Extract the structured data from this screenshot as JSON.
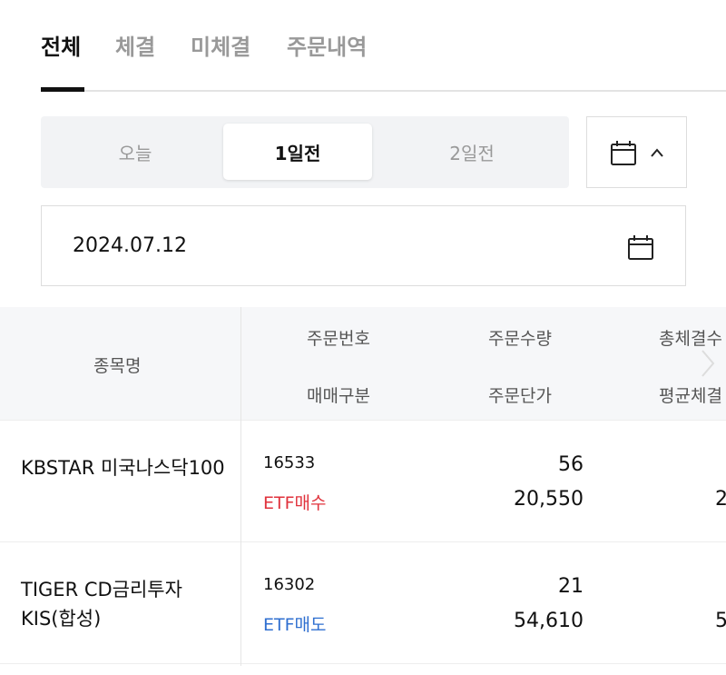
{
  "tabs": [
    {
      "label": "전체",
      "active": true
    },
    {
      "label": "체결"
    },
    {
      "label": "미체결"
    },
    {
      "label": "주문내역"
    }
  ],
  "period": {
    "options": [
      "오늘",
      "1일전",
      "2일전"
    ],
    "selected": "1일전"
  },
  "date": "2024.07.12",
  "table": {
    "headers": {
      "name": "종목명",
      "order_no": "주문번호",
      "trade_type": "매매구분",
      "order_qty": "주문수량",
      "order_price": "주문단가",
      "total_filled": "총체결수",
      "avg_filled": "평균체결"
    },
    "rows": [
      {
        "name": "KBSTAR 미국나스닥100",
        "order_no": "16533",
        "trade_type": "ETF매수",
        "trade_color": "#e0323c",
        "order_qty": "56",
        "order_price": "20,550",
        "col3_partial": "2"
      },
      {
        "name": "TIGER CD금리투자KIS(합성)",
        "order_no": "16302",
        "trade_type": "ETF매도",
        "trade_color": "#2f6fd0",
        "order_qty": "21",
        "order_price": "54,610",
        "col3_partial": "5"
      }
    ]
  }
}
